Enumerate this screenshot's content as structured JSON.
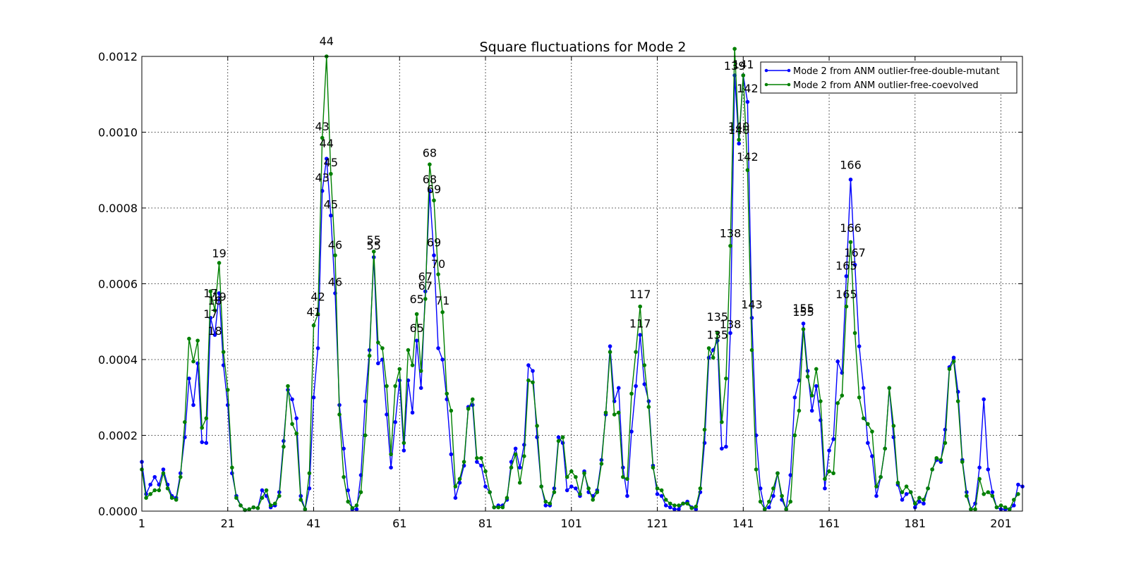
{
  "chart_data": {
    "type": "line",
    "title": "Square fluctuations for Mode 2",
    "xlabel": "",
    "ylabel": "",
    "xlim": [
      1,
      206
    ],
    "ylim": [
      0,
      0.0012
    ],
    "x_ticks": [
      1,
      21,
      41,
      61,
      81,
      101,
      121,
      141,
      161,
      181,
      201
    ],
    "y_ticks": [
      "0.0000",
      "0.0002",
      "0.0004",
      "0.0006",
      "0.0008",
      "0.0010",
      "0.0012"
    ],
    "grid": true,
    "legend_position": "top-right",
    "series": [
      {
        "name": "Mode 2 from ANM outlier-free-double-mutant",
        "color": "#0000ff",
        "values": [
          0.00013,
          4.5e-05,
          7e-05,
          9e-05,
          7e-05,
          0.00011,
          7e-05,
          4e-05,
          3.5e-05,
          0.0001,
          0.000195,
          0.00035,
          0.00028,
          0.00039,
          0.000182,
          0.00018,
          0.00051,
          0.000465,
          0.000575,
          0.000385,
          0.00028,
          0.0001,
          4e-05,
          1.5e-05,
          3e-06,
          5e-06,
          1e-05,
          8e-06,
          5.5e-05,
          4e-05,
          1e-05,
          1.5e-05,
          5e-05,
          0.000185,
          0.00032,
          0.000295,
          0.000245,
          4e-05,
          5e-06,
          6e-05,
          0.0003,
          0.00043,
          0.000845,
          0.00093,
          0.00078,
          0.000575,
          0.00028,
          0.000165,
          5.5e-05,
          5e-06,
          5e-06,
          9.5e-05,
          0.00029,
          0.000425,
          0.00067,
          0.00039,
          0.0004,
          0.000255,
          0.000115,
          0.000235,
          0.000345,
          0.00016,
          0.000345,
          0.00026,
          0.00045,
          0.000325,
          0.00058,
          0.000845,
          0.000675,
          0.00043,
          0.0004,
          0.000295,
          0.00015,
          3.5e-05,
          7.5e-05,
          0.00012,
          0.000275,
          0.00028,
          0.00013,
          0.00012,
          6.5e-05,
          5e-05,
          1e-05,
          1.5e-05,
          1.5e-05,
          3e-05,
          0.00013,
          0.000165,
          0.000115,
          0.000175,
          0.000385,
          0.00037,
          0.000195,
          6.5e-05,
          1.5e-05,
          1.5e-05,
          6e-05,
          0.000195,
          0.00018,
          5.5e-05,
          6.5e-05,
          6e-05,
          4e-05,
          0.000105,
          5e-05,
          4e-05,
          5.5e-05,
          0.000135,
          0.000255,
          0.000435,
          0.00029,
          0.000325,
          0.000115,
          4e-05,
          0.00021,
          0.00033,
          0.000465,
          0.000335,
          0.00029,
          0.00012,
          4.5e-05,
          4e-05,
          1.5e-05,
          1e-05,
          5e-06,
          5e-06,
          2e-05,
          2.5e-05,
          1e-05,
          5e-06,
          5e-05,
          0.00018,
          0.000405,
          0.000425,
          0.00045,
          0.000165,
          0.00017,
          0.00047,
          0.00115,
          0.00097,
          0.00115,
          0.00108,
          0.00051,
          0.0002,
          6e-05,
          5e-06,
          1e-05,
          4e-05,
          0.0001,
          3e-05,
          5e-06,
          9.5e-05,
          0.0003,
          0.000345,
          0.000495,
          0.00037,
          0.000265,
          0.00033,
          0.00024,
          6e-05,
          0.00016,
          0.00019,
          0.000395,
          0.000365,
          0.00062,
          0.000875,
          0.00065,
          0.000435,
          0.000325,
          0.00018,
          0.000145,
          4e-05,
          9e-05,
          0.000165,
          0.000325,
          0.000195,
          7e-05,
          3e-05,
          4.5e-05,
          5e-05,
          1e-05,
          2.5e-05,
          2e-05,
          6e-05,
          0.00011,
          0.000135,
          0.00013,
          0.000215,
          0.00038,
          0.000405,
          0.000315,
          0.000135,
          5e-05,
          5e-06,
          2e-05,
          0.000115,
          0.000295,
          0.00011,
          5e-05,
          1e-05,
          5e-06,
          5e-06,
          5e-06,
          1.5e-05,
          7e-05,
          6.5e-05
        ]
      },
      {
        "name": "Mode 2 from ANM outlier-free-coevolved",
        "color": "#008000",
        "values": [
          0.00011,
          3.5e-05,
          4.5e-05,
          5.5e-05,
          5.5e-05,
          0.0001,
          6e-05,
          3.5e-05,
          3e-05,
          9e-05,
          0.000235,
          0.000455,
          0.000395,
          0.00045,
          0.00022,
          0.000245,
          0.00058,
          0.00053,
          0.000655,
          0.00042,
          0.00032,
          0.000115,
          3.5e-05,
          1.5e-05,
          3e-06,
          5e-06,
          1e-05,
          8e-06,
          3.5e-05,
          5.5e-05,
          1.5e-05,
          2e-05,
          4e-05,
          0.00017,
          0.00033,
          0.00023,
          0.000205,
          3e-05,
          5e-06,
          0.0001,
          0.00049,
          0.00052,
          0.000985,
          0.0012,
          0.00089,
          0.000675,
          0.000255,
          9e-05,
          2.5e-05,
          8e-06,
          1.5e-05,
          5e-05,
          0.0002,
          0.00041,
          0.000685,
          0.000445,
          0.00043,
          0.00033,
          0.00015,
          0.00033,
          0.000375,
          0.00018,
          0.000425,
          0.000385,
          0.00052,
          0.00037,
          0.00056,
          0.000915,
          0.00082,
          0.000625,
          0.000525,
          0.00031,
          0.000265,
          6.5e-05,
          8.5e-05,
          0.00013,
          0.00027,
          0.000295,
          0.00014,
          0.00014,
          0.000105,
          5e-05,
          1e-05,
          1e-05,
          1e-05,
          3.5e-05,
          0.000115,
          0.00015,
          7.5e-05,
          0.000145,
          0.000345,
          0.00034,
          0.000225,
          6.5e-05,
          2.5e-05,
          2e-05,
          5e-05,
          0.000185,
          0.000195,
          9e-05,
          0.000105,
          9e-05,
          4.5e-05,
          0.0001,
          6e-05,
          3e-05,
          5e-05,
          0.000125,
          0.00026,
          0.00042,
          0.000255,
          0.00026,
          9e-05,
          8.5e-05,
          0.00031,
          0.00042,
          0.00054,
          0.000385,
          0.000275,
          0.000115,
          6e-05,
          5.5e-05,
          3e-05,
          2e-05,
          1.5e-05,
          1.5e-05,
          2e-05,
          2e-05,
          8e-06,
          1.2e-05,
          6e-05,
          0.000215,
          0.00043,
          0.000405,
          0.00047,
          0.000235,
          0.00035,
          0.0007,
          0.00122,
          0.00098,
          0.00115,
          0.0009,
          0.000425,
          0.00011,
          2.5e-05,
          5e-06,
          2.5e-05,
          6e-05,
          0.0001,
          4e-05,
          5e-06,
          2.5e-05,
          0.0002,
          0.000265,
          0.00048,
          0.000355,
          0.000305,
          0.000375,
          0.00029,
          8.5e-05,
          0.000105,
          0.0001,
          0.000285,
          0.000305,
          0.00054,
          0.00071,
          0.00047,
          0.0003,
          0.000245,
          0.00023,
          0.00021,
          6.5e-05,
          9e-05,
          0.000165,
          0.000325,
          0.000225,
          7.5e-05,
          5e-05,
          6.5e-05,
          5e-05,
          2e-05,
          3.5e-05,
          3e-05,
          6e-05,
          0.00011,
          0.00014,
          0.000135,
          0.00018,
          0.000375,
          0.000395,
          0.00029,
          0.00013,
          4e-05,
          5e-06,
          5e-06,
          8.5e-05,
          4.5e-05,
          5e-05,
          4e-05,
          1e-05,
          1.5e-05,
          1e-05,
          5e-06,
          3e-05,
          4.5e-05
        ]
      }
    ],
    "annotations": [
      {
        "text": "17",
        "x": 17,
        "y": 0.000565
      },
      {
        "text": "17",
        "x": 17,
        "y": 0.00051
      },
      {
        "text": "18",
        "x": 18,
        "y": 0.000545
      },
      {
        "text": "18",
        "x": 18,
        "y": 0.000465
      },
      {
        "text": "19",
        "x": 19,
        "y": 0.000555
      },
      {
        "text": "19",
        "x": 19,
        "y": 0.00067
      },
      {
        "text": "41",
        "x": 41,
        "y": 0.000515
      },
      {
        "text": "42",
        "x": 42,
        "y": 0.000555
      },
      {
        "text": "43",
        "x": 43,
        "y": 0.00087
      },
      {
        "text": "43",
        "x": 43,
        "y": 0.001005
      },
      {
        "text": "44",
        "x": 44,
        "y": 0.00096
      },
      {
        "text": "44",
        "x": 44,
        "y": 0.00123
      },
      {
        "text": "45",
        "x": 45,
        "y": 0.00091
      },
      {
        "text": "45",
        "x": 45,
        "y": 0.000799
      },
      {
        "text": "46",
        "x": 46,
        "y": 0.000692
      },
      {
        "text": "46",
        "x": 46,
        "y": 0.000594
      },
      {
        "text": "55",
        "x": 55,
        "y": 0.000705
      },
      {
        "text": "55",
        "x": 55,
        "y": 0.00069
      },
      {
        "text": "65",
        "x": 65,
        "y": 0.000549
      },
      {
        "text": "65",
        "x": 65,
        "y": 0.000473
      },
      {
        "text": "67",
        "x": 67,
        "y": 0.000608
      },
      {
        "text": "67",
        "x": 67,
        "y": 0.000584
      },
      {
        "text": "68",
        "x": 68,
        "y": 0.000935
      },
      {
        "text": "68",
        "x": 68,
        "y": 0.000865
      },
      {
        "text": "69",
        "x": 69,
        "y": 0.000839
      },
      {
        "text": "69",
        "x": 69,
        "y": 0.000699
      },
      {
        "text": "70",
        "x": 70,
        "y": 0.000642
      },
      {
        "text": "71",
        "x": 71,
        "y": 0.000545
      },
      {
        "text": "117",
        "x": 117,
        "y": 0.000562
      },
      {
        "text": "117",
        "x": 117,
        "y": 0.000485
      },
      {
        "text": "135",
        "x": 135,
        "y": 0.000502
      },
      {
        "text": "135",
        "x": 135,
        "y": 0.000455
      },
      {
        "text": "138",
        "x": 138,
        "y": 0.000723
      },
      {
        "text": "138",
        "x": 138,
        "y": 0.000483
      },
      {
        "text": "139",
        "x": 139,
        "y": 0.001165
      },
      {
        "text": "140",
        "x": 140,
        "y": 0.001005
      },
      {
        "text": "140",
        "x": 140,
        "y": 0.000995
      },
      {
        "text": "141",
        "x": 141,
        "y": 0.001168
      },
      {
        "text": "142",
        "x": 142,
        "y": 0.001105
      },
      {
        "text": "142",
        "x": 142,
        "y": 0.000925
      },
      {
        "text": "143",
        "x": 143,
        "y": 0.000535
      },
      {
        "text": "155",
        "x": 155,
        "y": 0.000525
      },
      {
        "text": "155",
        "x": 155,
        "y": 0.000515
      },
      {
        "text": "165",
        "x": 165,
        "y": 0.000637
      },
      {
        "text": "165",
        "x": 165,
        "y": 0.000562
      },
      {
        "text": "166",
        "x": 166,
        "y": 0.000903
      },
      {
        "text": "166",
        "x": 166,
        "y": 0.000737
      },
      {
        "text": "167",
        "x": 167,
        "y": 0.000672
      }
    ]
  }
}
